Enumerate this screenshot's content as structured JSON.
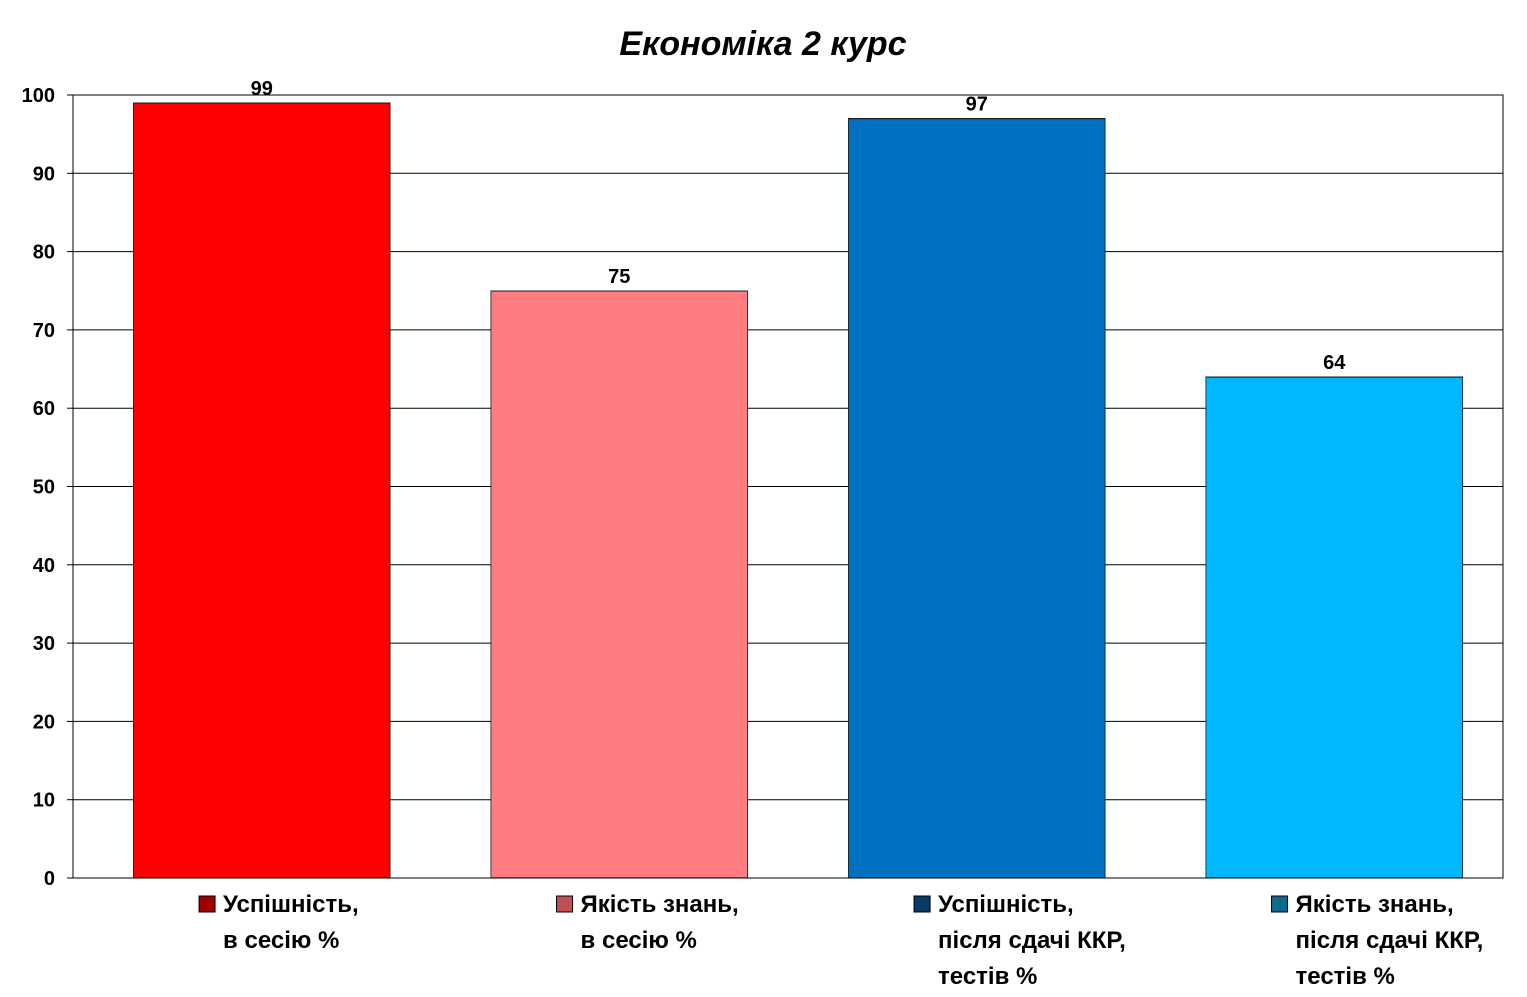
{
  "chart_data": {
    "type": "bar",
    "title": "Економіка 2 курс",
    "ylim": [
      0,
      100
    ],
    "y_ticks": [
      "0",
      "10",
      "20",
      "30",
      "40",
      "50",
      "60",
      "70",
      "80",
      "90",
      "100"
    ],
    "grid": true,
    "legend_placement": "bottom",
    "series": [
      {
        "name": "Успішність, в сесію %",
        "name_lines": [
          "Успішність,",
          "в сесію %"
        ],
        "value": 99,
        "color": "#ff0000",
        "marker_color": "#a00000"
      },
      {
        "name": "Якість знань, в сесію %",
        "name_lines": [
          "Якість знань,",
          "в сесію %"
        ],
        "value": 75,
        "color": "#ff7c80",
        "marker_color": "#c05050"
      },
      {
        "name": "Успішність, після сдачі ККР, тестів %",
        "name_lines": [
          "Успішність,",
          "після сдачі ККР,",
          "тестів %"
        ],
        "value": 97,
        "color": "#0070c0",
        "marker_color": "#0a3a6a"
      },
      {
        "name": "Якість знань, після сдачі ККР, тестів %",
        "name_lines": [
          "Якість знань,",
          "після сдачі ККР,",
          "тестів %"
        ],
        "value": 64,
        "color": "#00b8ff",
        "marker_color": "#106a90"
      }
    ]
  }
}
